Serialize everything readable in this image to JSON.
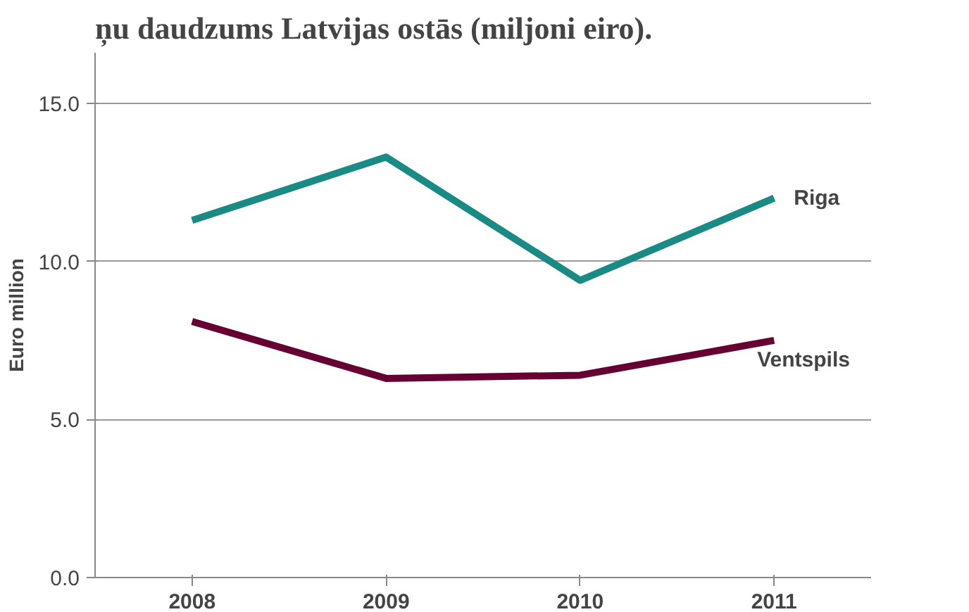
{
  "chart_data": {
    "type": "line",
    "title": "ņu daudzums Latvijas ostās (miljoni eiro).",
    "ylabel": "Euro million",
    "categories": [
      "2008",
      "2009",
      "2010",
      "2011"
    ],
    "series": [
      {
        "name": "Riga",
        "color": "#1a8a84",
        "values": [
          11.3,
          13.3,
          9.4,
          12.0
        ]
      },
      {
        "name": "Ventspils",
        "color": "#660033",
        "values": [
          8.1,
          6.3,
          6.4,
          7.5
        ]
      }
    ],
    "ylim": [
      0,
      16.6
    ],
    "yticks": [
      {
        "value": 0,
        "label": "0.0"
      },
      {
        "value": 5,
        "label": "5.0"
      },
      {
        "value": 10,
        "label": "10.0"
      },
      {
        "value": 15,
        "label": "15.0"
      }
    ],
    "grid": "y",
    "legend": false,
    "marker": "none",
    "line_style": "solid"
  }
}
